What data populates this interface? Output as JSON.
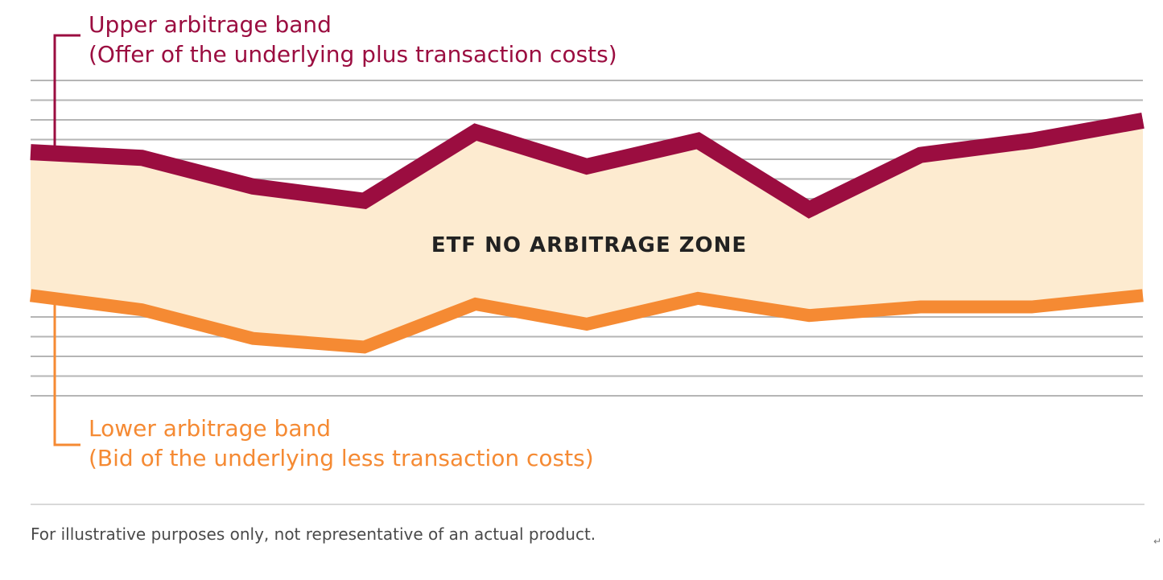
{
  "chart_data": {
    "type": "area",
    "x": [
      0,
      1,
      2,
      3,
      4,
      5,
      6,
      7,
      8,
      9,
      10
    ],
    "series": [
      {
        "name": "Upper arbitrage band",
        "values": [
          8.5,
          8.3,
          7.3,
          6.8,
          9.2,
          8.0,
          8.9,
          6.5,
          8.4,
          8.9,
          9.6
        ]
      },
      {
        "name": "Lower arbitrage band",
        "values": [
          3.5,
          3.0,
          2.0,
          1.7,
          3.2,
          2.5,
          3.4,
          2.8,
          3.1,
          3.1,
          3.5
        ]
      }
    ],
    "xlim": [
      0,
      10
    ],
    "ylim": [
      0,
      11
    ],
    "gridlines": 16,
    "grid": true,
    "colors": {
      "upper": "#9b0d40",
      "lower": "#f58a33",
      "fill": "#fdebd0",
      "grid": "#b5b5b5",
      "text": "#222222"
    },
    "annotations": {
      "upper": {
        "line1": "Upper arbitrage band",
        "line2": "(Offer of the underlying plus transaction costs)"
      },
      "lower": {
        "line1": "Lower arbitrage band",
        "line2": "(Bid of the underlying less transaction costs)"
      },
      "zone": "ETF NO ARBITRAGE ZONE"
    }
  },
  "footnote": "For illustrative purposes only, not representative of an actual product.",
  "return_glyph": "↵"
}
